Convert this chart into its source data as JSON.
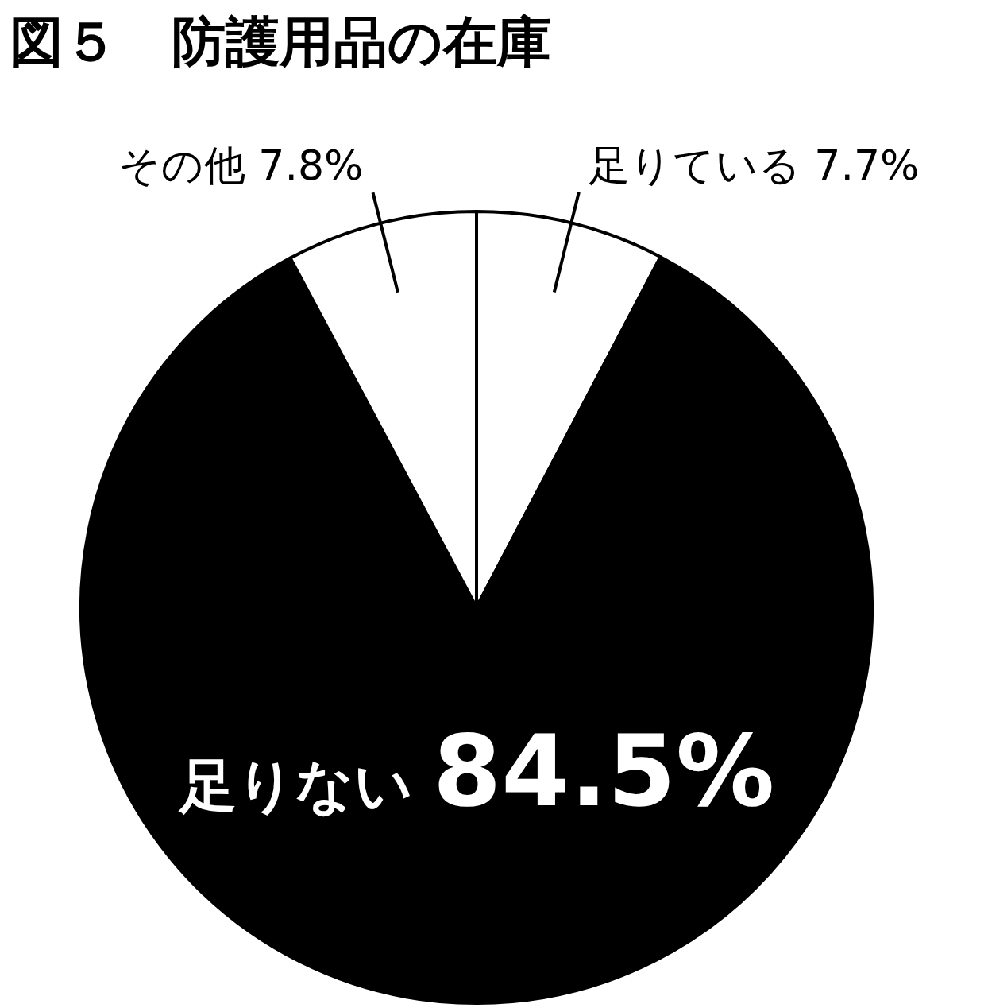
{
  "chart_data": {
    "type": "pie",
    "title": "図５　防護用品の在庫",
    "categories": [
      "足りている",
      "足りない",
      "その他"
    ],
    "values": [
      7.7,
      84.5,
      7.8
    ],
    "colors": [
      "#ffffff",
      "#000000",
      "#ffffff"
    ],
    "value_labels": [
      "7.7%",
      "84.5%",
      "7.8%"
    ]
  }
}
